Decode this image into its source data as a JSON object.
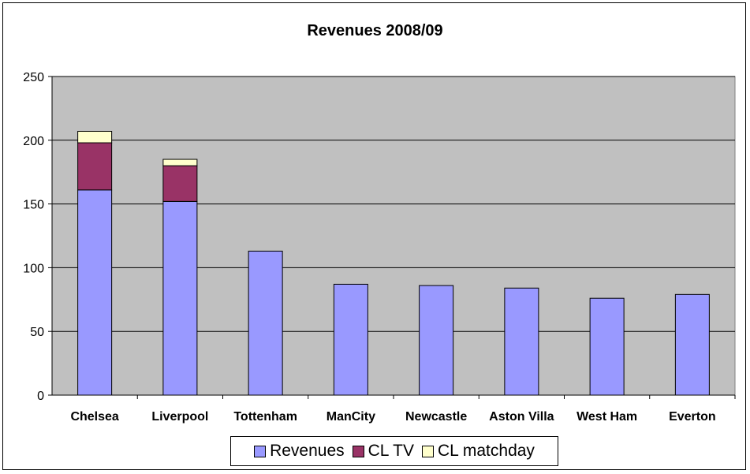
{
  "chart_data": {
    "type": "bar",
    "stacked": true,
    "title": "Revenues 2008/09",
    "xlabel": "",
    "ylabel": "",
    "ylim": [
      0,
      250
    ],
    "yticks": [
      0,
      50,
      100,
      150,
      200,
      250
    ],
    "grid": true,
    "legend_position": "bottom",
    "categories": [
      "Chelsea",
      "Liverpool",
      "Tottenham",
      "ManCity",
      "Newcastle",
      "Aston Villa",
      "West Ham",
      "Everton"
    ],
    "series": [
      {
        "name": "Revenues",
        "color": "#9999ff",
        "values": [
          161,
          152,
          113,
          87,
          86,
          84,
          76,
          79
        ]
      },
      {
        "name": "CL TV",
        "color": "#993366",
        "values": [
          37,
          28,
          0,
          0,
          0,
          0,
          0,
          0
        ]
      },
      {
        "name": "CL matchday",
        "color": "#ffffcc",
        "values": [
          9,
          5,
          0,
          0,
          0,
          0,
          0,
          0
        ]
      }
    ]
  }
}
